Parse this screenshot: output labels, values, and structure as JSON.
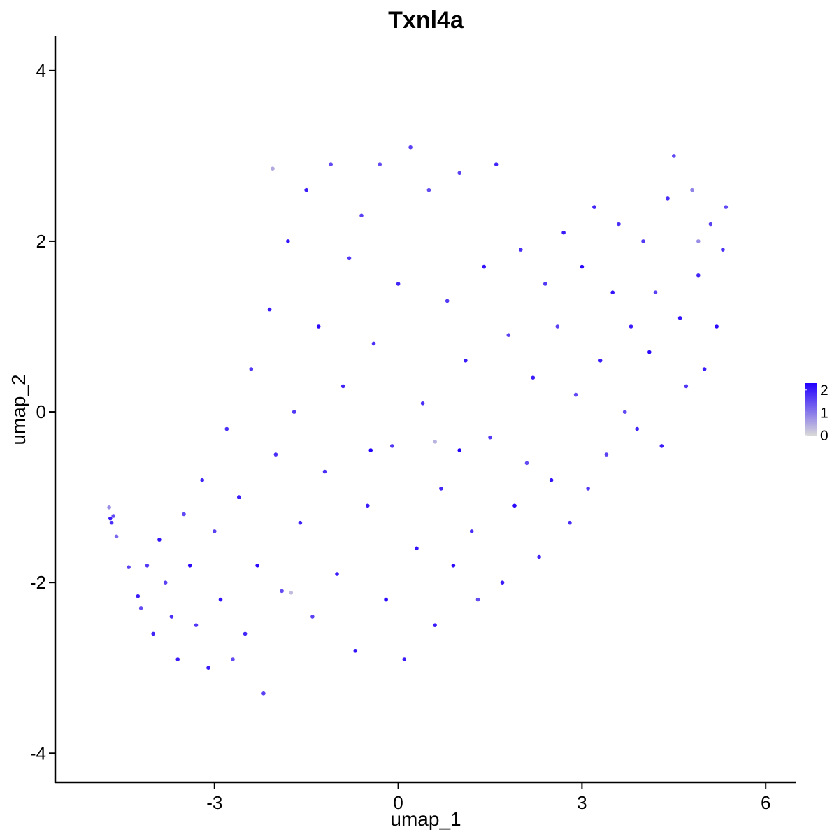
{
  "chart_data": {
    "type": "scatter",
    "title": "Txnl4a",
    "xlabel": "umap_1",
    "ylabel": "umap_2",
    "xlim": [
      -5.6,
      6.5
    ],
    "ylim": [
      -4.35,
      4.4
    ],
    "xticks": [
      {
        "value": -3,
        "label": "-3"
      },
      {
        "value": 0,
        "label": "0"
      },
      {
        "value": 3,
        "label": "3"
      },
      {
        "value": 6,
        "label": "6"
      }
    ],
    "yticks": [
      {
        "value": 4,
        "label": "4"
      },
      {
        "value": 2,
        "label": "2"
      },
      {
        "value": 0,
        "label": "0"
      },
      {
        "value": -2,
        "label": "-2"
      },
      {
        "value": -4,
        "label": "-4"
      }
    ],
    "grid": false,
    "legend": {
      "placement": "right",
      "min": 0,
      "max": 2.3,
      "low_color": "#d9d9d9",
      "high_color": "#2200ff",
      "ticks": [
        {
          "value": 2,
          "label": "2"
        },
        {
          "value": 1,
          "label": "1"
        },
        {
          "value": 0,
          "label": "0"
        }
      ]
    },
    "point_color_scale": [
      "#d9d9d9",
      "#2200ff"
    ],
    "points": [
      [
        -4.7,
        -1.25,
        2
      ],
      [
        -4.65,
        -1.22,
        1.5
      ],
      [
        -4.68,
        -1.3,
        1.8
      ],
      [
        -4.6,
        -1.46,
        1.2
      ],
      [
        -4.72,
        -1.12,
        0.8
      ],
      [
        -4.4,
        -1.82,
        1.6
      ],
      [
        -4.25,
        -2.16,
        2
      ],
      [
        -4.1,
        -1.8,
        1.7
      ],
      [
        -4.2,
        -2.3,
        1.5
      ],
      [
        -4.0,
        -2.6,
        1.9
      ],
      [
        -3.9,
        -1.5,
        2.1
      ],
      [
        -3.8,
        -2.0,
        1.6
      ],
      [
        -3.7,
        -2.4,
        1.8
      ],
      [
        -3.6,
        -2.9,
        2
      ],
      [
        -3.5,
        -1.2,
        1.5
      ],
      [
        -3.4,
        -1.8,
        2.2
      ],
      [
        -3.3,
        -2.5,
        1.7
      ],
      [
        -3.2,
        -0.8,
        1.9
      ],
      [
        -3.1,
        -3.0,
        2
      ],
      [
        -3.0,
        -1.4,
        1.6
      ],
      [
        -2.9,
        -2.2,
        2.1
      ],
      [
        -2.8,
        -0.2,
        1.8
      ],
      [
        -2.7,
        -2.9,
        1.5
      ],
      [
        -2.6,
        -1.0,
        2
      ],
      [
        -2.5,
        -2.6,
        1.9
      ],
      [
        -2.4,
        0.5,
        1.7
      ],
      [
        -2.3,
        -1.8,
        2.2
      ],
      [
        -2.2,
        -3.3,
        1.6
      ],
      [
        -2.1,
        1.2,
        2
      ],
      [
        -2.0,
        -0.5,
        1.8
      ],
      [
        -1.9,
        -2.1,
        1.5
      ],
      [
        -1.8,
        2.0,
        2.1
      ],
      [
        -1.7,
        0.0,
        1.7
      ],
      [
        -1.6,
        -1.3,
        1.9
      ],
      [
        -1.5,
        2.6,
        2
      ],
      [
        -1.4,
        -2.4,
        1.6
      ],
      [
        -1.3,
        1.0,
        2.2
      ],
      [
        -1.2,
        -0.7,
        1.8
      ],
      [
        -1.1,
        2.9,
        1.5
      ],
      [
        -1.0,
        -1.9,
        2
      ],
      [
        -0.9,
        0.3,
        1.9
      ],
      [
        -0.8,
        1.8,
        1.7
      ],
      [
        -0.7,
        -2.8,
        2.1
      ],
      [
        -0.6,
        2.3,
        1.6
      ],
      [
        -0.5,
        -1.1,
        2
      ],
      [
        -0.4,
        0.8,
        1.8
      ],
      [
        -0.3,
        2.9,
        1.5
      ],
      [
        -0.2,
        -2.2,
        2.2
      ],
      [
        -0.1,
        -0.4,
        1.7
      ],
      [
        0.0,
        1.5,
        1.9
      ],
      [
        0.1,
        -2.9,
        2
      ],
      [
        0.2,
        3.1,
        1.6
      ],
      [
        0.3,
        -1.6,
        2.1
      ],
      [
        0.4,
        0.1,
        1.8
      ],
      [
        0.5,
        2.6,
        1.5
      ],
      [
        0.6,
        -2.5,
        2
      ],
      [
        0.7,
        -0.9,
        1.9
      ],
      [
        0.8,
        1.3,
        1.7
      ],
      [
        0.9,
        -1.8,
        2.2
      ],
      [
        1.0,
        2.8,
        1.6
      ],
      [
        1.1,
        0.6,
        2
      ],
      [
        1.2,
        -1.4,
        1.8
      ],
      [
        1.3,
        -2.2,
        1.5
      ],
      [
        1.4,
        1.7,
        2.1
      ],
      [
        1.5,
        -0.3,
        1.7
      ],
      [
        1.6,
        2.9,
        1.9
      ],
      [
        1.7,
        -2.0,
        2
      ],
      [
        1.8,
        0.9,
        1.6
      ],
      [
        1.9,
        -1.1,
        2.2
      ],
      [
        2.0,
        1.9,
        1.8
      ],
      [
        2.1,
        -0.6,
        1.5
      ],
      [
        2.2,
        0.4,
        2
      ],
      [
        2.3,
        -1.7,
        1.9
      ],
      [
        2.4,
        1.5,
        1.7
      ],
      [
        2.5,
        -0.8,
        2.1
      ],
      [
        2.6,
        1.0,
        1.6
      ],
      [
        2.7,
        2.1,
        2
      ],
      [
        2.8,
        -1.3,
        1.8
      ],
      [
        2.9,
        0.2,
        1.5
      ],
      [
        3.0,
        1.7,
        2.2
      ],
      [
        3.1,
        -0.9,
        1.7
      ],
      [
        3.2,
        2.4,
        1.9
      ],
      [
        3.3,
        0.6,
        2
      ],
      [
        3.4,
        -0.5,
        1.6
      ],
      [
        3.5,
        1.4,
        2.1
      ],
      [
        3.6,
        2.2,
        1.8
      ],
      [
        3.7,
        0.0,
        1.5
      ],
      [
        3.8,
        1.0,
        2
      ],
      [
        3.9,
        -0.2,
        1.9
      ],
      [
        4.0,
        2.0,
        1.7
      ],
      [
        4.1,
        0.7,
        2.2
      ],
      [
        4.2,
        1.4,
        1.6
      ],
      [
        4.3,
        -0.4,
        2
      ],
      [
        4.4,
        2.5,
        1.8
      ],
      [
        4.5,
        3.0,
        1.5
      ],
      [
        4.6,
        1.1,
        2.1
      ],
      [
        4.7,
        0.3,
        1.7
      ],
      [
        4.8,
        2.6,
        0.9
      ],
      [
        4.9,
        1.6,
        1.9
      ],
      [
        5.0,
        0.5,
        2
      ],
      [
        5.1,
        2.2,
        1.6
      ],
      [
        5.2,
        1.0,
        2.2
      ],
      [
        5.3,
        1.9,
        1.8
      ],
      [
        5.35,
        2.4,
        1.5
      ],
      [
        4.9,
        2.0,
        0.8
      ],
      [
        -2.05,
        2.85,
        0.5
      ],
      [
        -1.75,
        -2.12,
        0.3
      ],
      [
        0.6,
        -0.35,
        0.4
      ],
      [
        1.0,
        -0.45,
        2.5
      ],
      [
        -0.45,
        -0.45,
        2.5
      ]
    ]
  }
}
